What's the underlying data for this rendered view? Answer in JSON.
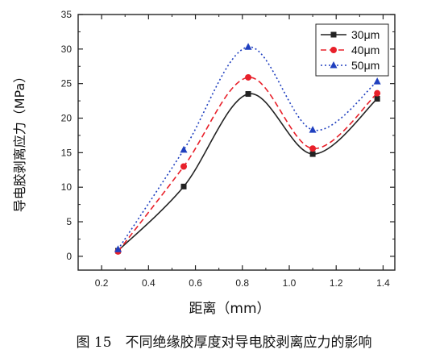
{
  "chart_data": {
    "type": "line",
    "title": "",
    "xlabel": "距离（mm）",
    "ylabel": "导电胶剥离应力（MPa）",
    "xlim": [
      0.1,
      1.45
    ],
    "ylim": [
      -2,
      35
    ],
    "x_ticks": [
      0.2,
      0.4,
      0.6,
      0.8,
      1.0,
      1.2,
      1.4
    ],
    "x_tick_labels": [
      "0.2",
      "0.4",
      "0.6",
      "0.8",
      "1.0",
      "1.2",
      "1.4"
    ],
    "y_ticks": [
      0,
      5,
      10,
      15,
      20,
      25,
      30,
      35
    ],
    "y_tick_labels": [
      "0",
      "5",
      "10",
      "15",
      "20",
      "25",
      "30",
      "35"
    ],
    "grid": false,
    "legend_position": "top-right",
    "x": [
      0.27,
      0.55,
      0.825,
      1.1,
      1.375
    ],
    "series": [
      {
        "name": "30μm",
        "values": [
          0.8,
          10.1,
          23.5,
          14.8,
          22.8
        ],
        "color": "#222222",
        "line": "solid",
        "marker": "square"
      },
      {
        "name": "40μm",
        "values": [
          0.7,
          13.0,
          25.9,
          15.6,
          23.6
        ],
        "color": "#e8202a",
        "line": "dashed",
        "marker": "circle"
      },
      {
        "name": "50μm",
        "values": [
          1.0,
          15.4,
          30.3,
          18.3,
          25.3
        ],
        "color": "#1f3fbf",
        "line": "dotted",
        "marker": "triangle"
      }
    ]
  },
  "caption": "图 15　不同绝缘胶厚度对导电胶剥离应力的影响"
}
